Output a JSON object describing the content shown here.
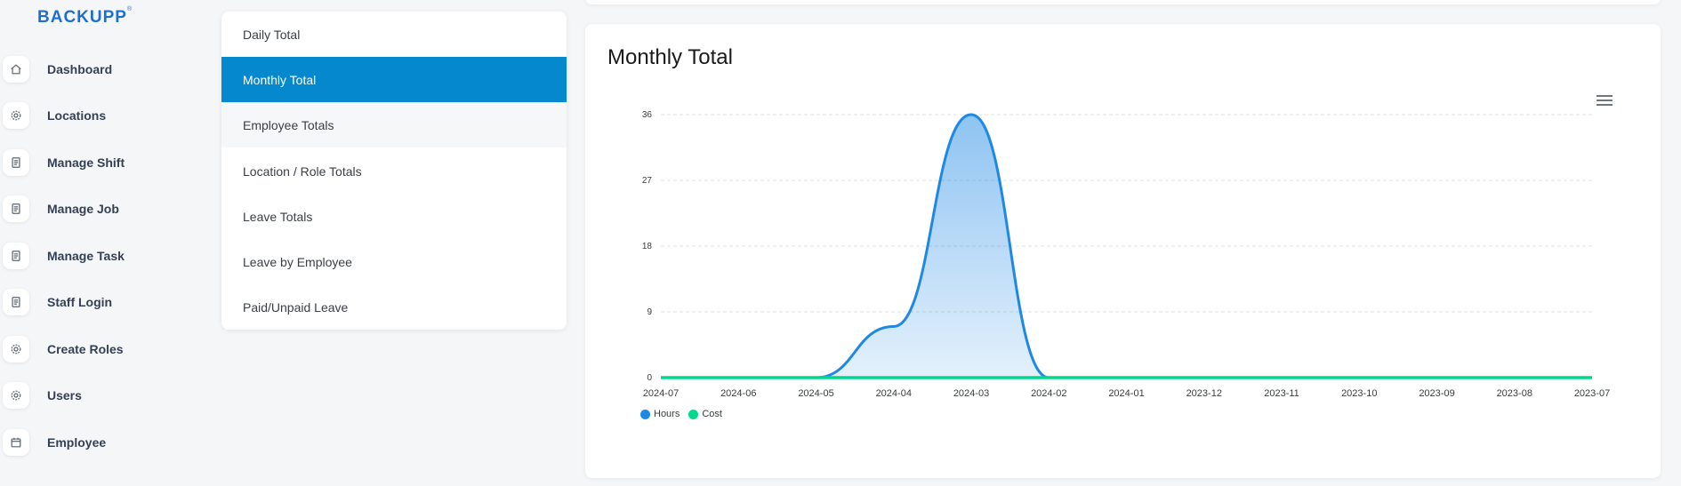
{
  "brand": {
    "logo_text": "BACKUPP",
    "logo_mark": "®",
    "color": "#1f6fd1"
  },
  "sidebar": {
    "items": [
      {
        "label": "Dashboard",
        "icon": "home-icon"
      },
      {
        "label": "Locations",
        "icon": "gear-icon"
      },
      {
        "label": "Manage Shift",
        "icon": "document-icon"
      },
      {
        "label": "Manage Job",
        "icon": "document-icon"
      },
      {
        "label": "Manage Task",
        "icon": "document-icon"
      },
      {
        "label": "Staff Login",
        "icon": "document-icon"
      },
      {
        "label": "Create Roles",
        "icon": "gear-icon"
      },
      {
        "label": "Users",
        "icon": "gear-icon"
      },
      {
        "label": "Employee",
        "icon": "calendar-icon"
      }
    ]
  },
  "report_menu": {
    "active_color": "#0588cd",
    "items": [
      {
        "label": "Daily Total"
      },
      {
        "label": "Monthly Total",
        "active": true
      },
      {
        "label": "Employee Totals",
        "hover": true
      },
      {
        "label": "Location / Role Totals"
      },
      {
        "label": "Leave Totals"
      },
      {
        "label": "Leave by Employee"
      },
      {
        "label": "Paid/Unpaid Leave"
      }
    ]
  },
  "card": {
    "title": "Monthly Total",
    "menu_icon": "hamburger-menu-icon"
  },
  "chart_data": {
    "type": "area",
    "title": "Monthly Total",
    "x": [
      "2024-07",
      "2024-06",
      "2024-05",
      "2024-04",
      "2024-03",
      "2024-02",
      "2024-01",
      "2023-12",
      "2023-11",
      "2023-10",
      "2023-09",
      "2023-08",
      "2023-07"
    ],
    "series": [
      {
        "name": "Hours",
        "color": "#1e88e5",
        "values": [
          0,
          0,
          0,
          7,
          36,
          0,
          0,
          0,
          0,
          0,
          0,
          0,
          0
        ]
      },
      {
        "name": "Cost",
        "color": "#00d98b",
        "values": [
          0,
          0,
          0,
          0,
          0,
          0,
          0,
          0,
          0,
          0,
          0,
          0,
          0
        ]
      }
    ],
    "yticks": [
      0,
      9,
      18,
      27,
      36
    ],
    "ylim": [
      0,
      36
    ],
    "grid": true,
    "legend_position": "bottom-left"
  }
}
